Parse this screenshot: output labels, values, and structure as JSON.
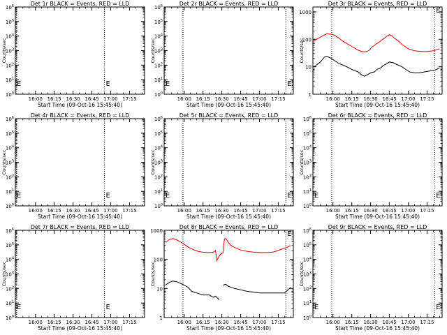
{
  "figure": {
    "x_axis_label": "Start Time (09-Oct-16 15:45:40)",
    "y_axis_label": "Counts/sec",
    "marker_label": "E",
    "colors": {
      "events": "#000000",
      "lld": "#e00000",
      "axes": "#000000"
    }
  },
  "chart_data": [
    {
      "type": "line",
      "title": "Det 1r BLACK = Events, RED = LLD",
      "x_tick_labels": [
        "16:00",
        "16:15",
        "16:30",
        "16:45",
        "17:00",
        "17:15"
      ],
      "xlim_minutes": [
        -1,
        102
      ],
      "x_tick_minutes": [
        15,
        30,
        45,
        60,
        75,
        90
      ],
      "y_scale": "log",
      "ylim": [
        1,
        1000000
      ],
      "y_tick_labels": [
        "10^0",
        "10^1",
        "10^2",
        "10^3",
        "10^4",
        "10^5",
        "10^6"
      ],
      "y_tick_values": [
        1,
        10,
        100,
        1000,
        10000,
        100000,
        1000000
      ],
      "dotted_lines_minutes": [
        0,
        70
      ],
      "series": []
    },
    {
      "type": "line",
      "title": "Det 2r BLACK = Events, RED = LLD",
      "x_tick_labels": [
        "16:00",
        "16:15",
        "16:30",
        "16:45",
        "17:00",
        "17:15"
      ],
      "xlim_minutes": [
        -1,
        102
      ],
      "x_tick_minutes": [
        15,
        30,
        45,
        60,
        75,
        90
      ],
      "y_scale": "log",
      "ylim": [
        1,
        1000000
      ],
      "y_tick_labels": [
        "10^0",
        "10^1",
        "10^2",
        "10^3",
        "10^4",
        "10^5",
        "10^6"
      ],
      "y_tick_values": [
        1,
        10,
        100,
        1000,
        10000,
        100000,
        1000000
      ],
      "dotted_lines_minutes": [
        14,
        96
      ],
      "series": []
    },
    {
      "type": "line",
      "title": "Det 3r BLACK = Events, RED = LLD",
      "x_tick_labels": [
        "16:00",
        "16:15",
        "16:30",
        "16:45",
        "17:00",
        "17:15"
      ],
      "xlim_minutes": [
        -1,
        102
      ],
      "x_tick_minutes": [
        15,
        30,
        45,
        60,
        75,
        90
      ],
      "y_scale": "log",
      "ylim": [
        1,
        1500
      ],
      "y_tick_labels": [
        "1",
        "10",
        "100",
        "1000"
      ],
      "y_tick_values": [
        1,
        10,
        100,
        1000
      ],
      "dotted_lines_minutes": [
        14,
        96
      ],
      "series": [
        {
          "color": "#e00000",
          "x": [
            0,
            5,
            10,
            15,
            20,
            22,
            25,
            30,
            35,
            38,
            40,
            42,
            44,
            45,
            46,
            48,
            50,
            52,
            54,
            56,
            58,
            60,
            62,
            64,
            66,
            68,
            70,
            75,
            80,
            85,
            90,
            95,
            100
          ],
          "y": [
            90,
            120,
            160,
            150,
            110,
            90,
            75,
            55,
            40,
            36,
            35,
            36,
            40,
            45,
            52,
            60,
            70,
            80,
            95,
            110,
            130,
            150,
            135,
            110,
            95,
            80,
            65,
            45,
            38,
            36,
            36,
            38,
            45
          ]
        },
        {
          "color": "#000000",
          "x": [
            0,
            5,
            8,
            10,
            13,
            16,
            20,
            24,
            28,
            30,
            33,
            35,
            38,
            40,
            42,
            45,
            48,
            50,
            53,
            55,
            58,
            60,
            63,
            66,
            70,
            73,
            76,
            80,
            84,
            88,
            92,
            96,
            100
          ],
          "y": [
            10,
            15,
            22,
            24,
            21,
            17,
            13,
            11,
            9,
            8,
            7,
            6.5,
            5,
            4.5,
            5,
            6,
            6.5,
            8,
            9,
            11,
            13,
            15,
            14,
            12,
            10,
            8,
            6.5,
            6,
            6,
            6.5,
            7,
            7.5,
            9
          ]
        }
      ]
    },
    {
      "type": "line",
      "title": "Det 4r BLACK = Events, RED = LLD",
      "x_tick_labels": [
        "16:00",
        "16:15",
        "16:30",
        "16:45",
        "17:00",
        "17:15"
      ],
      "xlim_minutes": [
        -1,
        102
      ],
      "x_tick_minutes": [
        15,
        30,
        45,
        60,
        75,
        90
      ],
      "y_scale": "log",
      "ylim": [
        1,
        1000000
      ],
      "y_tick_labels": [
        "10^0",
        "10^1",
        "10^2",
        "10^3",
        "10^4",
        "10^5",
        "10^6"
      ],
      "y_tick_values": [
        1,
        10,
        100,
        1000,
        10000,
        100000,
        1000000
      ],
      "dotted_lines_minutes": [
        0,
        70
      ],
      "series": []
    },
    {
      "type": "line",
      "title": "Det 5r BLACK = Events, RED = LLD",
      "x_tick_labels": [
        "16:00",
        "16:15",
        "16:30",
        "16:45",
        "17:00",
        "17:15"
      ],
      "xlim_minutes": [
        -1,
        102
      ],
      "x_tick_minutes": [
        15,
        30,
        45,
        60,
        75,
        90
      ],
      "y_scale": "log",
      "ylim": [
        1,
        1000000
      ],
      "y_tick_labels": [
        "10^0",
        "10^1",
        "10^2",
        "10^3",
        "10^4",
        "10^5",
        "10^6"
      ],
      "y_tick_values": [
        1,
        10,
        100,
        1000,
        10000,
        100000,
        1000000
      ],
      "dotted_lines_minutes": [
        14,
        96
      ],
      "series": []
    },
    {
      "type": "line",
      "title": "Det 6r BLACK = Events, RED = LLD",
      "x_tick_labels": [
        "16:00",
        "16:15",
        "16:30",
        "16:45",
        "17:00",
        "17:15"
      ],
      "xlim_minutes": [
        -1,
        102
      ],
      "x_tick_minutes": [
        15,
        30,
        45,
        60,
        75,
        90
      ],
      "y_scale": "log",
      "ylim": [
        1,
        1000000
      ],
      "y_tick_labels": [
        "10^0",
        "10^1",
        "10^2",
        "10^3",
        "10^4",
        "10^5",
        "10^6"
      ],
      "y_tick_values": [
        1,
        10,
        100,
        1000,
        10000,
        100000,
        1000000
      ],
      "dotted_lines_minutes": [
        14,
        96
      ],
      "series": []
    },
    {
      "type": "line",
      "title": "Det 7r BLACK = Events, RED = LLD",
      "x_tick_labels": [
        "16:00",
        "16:15",
        "16:30",
        "16:45",
        "17:00",
        "17:15"
      ],
      "xlim_minutes": [
        -1,
        102
      ],
      "x_tick_minutes": [
        15,
        30,
        45,
        60,
        75,
        90
      ],
      "y_scale": "log",
      "ylim": [
        1,
        1000000
      ],
      "y_tick_labels": [
        "10^0",
        "10^1",
        "10^2",
        "10^3",
        "10^4",
        "10^5",
        "10^6"
      ],
      "y_tick_values": [
        1,
        10,
        100,
        1000,
        10000,
        100000,
        1000000
      ],
      "dotted_lines_minutes": [
        0,
        70
      ],
      "series": []
    },
    {
      "type": "line",
      "title": "Det 8r BLACK = Events, RED = LLD",
      "x_tick_labels": [
        "16:00",
        "16:15",
        "16:30",
        "16:45",
        "17:00",
        "17:15"
      ],
      "xlim_minutes": [
        -1,
        102
      ],
      "x_tick_minutes": [
        15,
        30,
        45,
        60,
        75,
        90
      ],
      "y_scale": "log",
      "ylim": [
        1,
        1000
      ],
      "y_tick_labels": [
        "1",
        "10",
        "100",
        "1000"
      ],
      "y_tick_values": [
        1,
        10,
        100,
        1000
      ],
      "dotted_lines_minutes": [
        14,
        96
      ],
      "series": [
        {
          "color": "#e00000",
          "x": [
            0,
            3,
            6,
            9,
            12,
            15,
            18,
            22,
            26,
            30,
            34,
            38,
            40,
            41,
            42,
            43,
            44,
            46,
            47,
            48,
            49,
            50,
            52,
            55,
            60,
            65,
            70,
            75,
            80,
            85,
            88,
            92,
            96,
            100
          ],
          "y": [
            380,
            480,
            520,
            470,
            400,
            330,
            270,
            220,
            190,
            175,
            172,
            175,
            200,
            90,
            110,
            130,
            150,
            170,
            500,
            520,
            470,
            390,
            310,
            260,
            210,
            190,
            178,
            172,
            172,
            175,
            190,
            220,
            250,
            300
          ]
        },
        {
          "color": "#000000",
          "x": [
            0,
            3,
            6,
            9,
            12,
            15,
            18,
            21,
            25,
            30,
            35,
            38,
            40,
            42,
            43,
            44,
            45,
            46,
            48,
            50,
            55,
            60,
            65,
            70,
            75,
            80,
            85,
            90,
            95,
            100
          ],
          "y": [
            13,
            16,
            18,
            17,
            15,
            13,
            11,
            8,
            7,
            6,
            6,
            5,
            5.5,
            4.5,
            4,
            null,
            null,
            13,
            14,
            12,
            10,
            9,
            8,
            7.5,
            7,
            7,
            7,
            7,
            7,
            11
          ]
        }
      ]
    },
    {
      "type": "line",
      "title": "Det 9r BLACK = Events, RED = LLD",
      "x_tick_labels": [
        "16:00",
        "16:15",
        "16:30",
        "16:45",
        "17:00",
        "17:15"
      ],
      "xlim_minutes": [
        -1,
        102
      ],
      "x_tick_minutes": [
        15,
        30,
        45,
        60,
        75,
        90
      ],
      "y_scale": "log",
      "ylim": [
        1,
        1000000
      ],
      "y_tick_labels": [
        "10^0",
        "10^1",
        "10^2",
        "10^3",
        "10^4",
        "10^5",
        "10^6"
      ],
      "y_tick_values": [
        1,
        10,
        100,
        1000,
        10000,
        100000,
        1000000
      ],
      "dotted_lines_minutes": [
        14,
        96
      ],
      "series": []
    }
  ]
}
